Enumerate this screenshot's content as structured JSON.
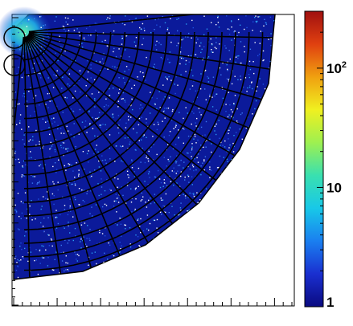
{
  "chart_data": {
    "type": "heatmap",
    "title": "",
    "xlabel": "",
    "ylabel": "",
    "z_scale": "log",
    "z_range": [
      1,
      300
    ],
    "colorbar": {
      "position": "right",
      "tick_labels": [
        {
          "value": 1,
          "label": "1"
        },
        {
          "value": 10,
          "label": "10"
        },
        {
          "value": 100,
          "label": "10",
          "sup": "2"
        }
      ],
      "colors": [
        "#0a0a80",
        "#1a2fd0",
        "#1a7ff0",
        "#18c8e8",
        "#39e0b0",
        "#9ef050",
        "#f0f020",
        "#f0a010",
        "#e04010",
        "#a01010"
      ]
    },
    "x_ticks_count": 33,
    "y_ticks_count": 36,
    "grid": false,
    "polar_overlay": {
      "rings": 18,
      "spokes": 15
    }
  }
}
